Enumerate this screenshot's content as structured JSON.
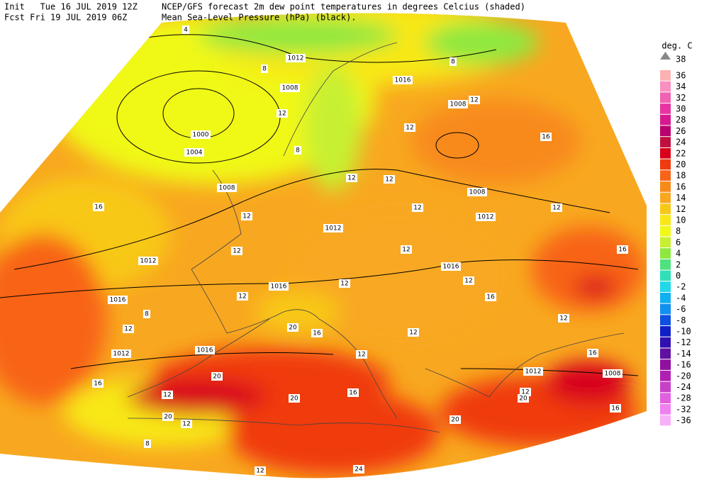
{
  "header": {
    "init": "Init   Tue 16 JUL 2019 12Z",
    "fcst": "Fcst Fri 19 JUL 2019 06Z",
    "title_line1": "NCEP/GFS forecast 2m dew point temperatures in degrees Celcius (shaded)",
    "title_line2": "Mean Sea-Level Pressure (hPa) (black)."
  },
  "legend": {
    "title": "deg. C",
    "top_value": 38,
    "levels": [
      {
        "value": 36,
        "color": "#fbb2b2"
      },
      {
        "value": 34,
        "color": "#f890c0"
      },
      {
        "value": 32,
        "color": "#f062b2"
      },
      {
        "value": 30,
        "color": "#e834a2"
      },
      {
        "value": 28,
        "color": "#d81890"
      },
      {
        "value": 26,
        "color": "#b8006e"
      },
      {
        "value": 24,
        "color": "#c01040"
      },
      {
        "value": 22,
        "color": "#d8001a"
      },
      {
        "value": 20,
        "color": "#f03a10"
      },
      {
        "value": 18,
        "color": "#f86418"
      },
      {
        "value": 16,
        "color": "#f88a1a"
      },
      {
        "value": 14,
        "color": "#f8a820"
      },
      {
        "value": 12,
        "color": "#f8c818"
      },
      {
        "value": 10,
        "color": "#f8e818"
      },
      {
        "value": 8,
        "color": "#f0f818"
      },
      {
        "value": 6,
        "color": "#c8f030"
      },
      {
        "value": 4,
        "color": "#8ee840"
      },
      {
        "value": 2,
        "color": "#50e080"
      },
      {
        "value": 0,
        "color": "#30e0b8"
      },
      {
        "value": -2,
        "color": "#20d8e8"
      },
      {
        "value": -4,
        "color": "#10b0f0"
      },
      {
        "value": -6,
        "color": "#1090f0"
      },
      {
        "value": -8,
        "color": "#1050e0"
      },
      {
        "value": -10,
        "color": "#1020c8"
      },
      {
        "value": -12,
        "color": "#3010b0"
      },
      {
        "value": -14,
        "color": "#6010a0"
      },
      {
        "value": -16,
        "color": "#9010a0"
      },
      {
        "value": -20,
        "color": "#b020b0"
      },
      {
        "value": -24,
        "color": "#c840c8"
      },
      {
        "value": -28,
        "color": "#e060e0"
      },
      {
        "value": -32,
        "color": "#f080f0"
      },
      {
        "value": -36,
        "color": "#f8b0f8"
      }
    ]
  },
  "map_labels": [
    "4",
    "1012",
    "8",
    "1016",
    "8",
    "1008",
    "1008",
    "12",
    "12",
    "1000",
    "12",
    "16",
    "1004",
    "8",
    "12",
    "12",
    "1008",
    "1008",
    "16",
    "12",
    "12",
    "12",
    "1012",
    "1012",
    "12",
    "12",
    "16",
    "1012",
    "1016",
    "1016",
    "12",
    "12",
    "8",
    "12",
    "16",
    "12",
    "1016",
    "12",
    "20",
    "16",
    "12",
    "1016",
    "1012",
    "16",
    "12",
    "1012",
    "1008",
    "20",
    "16",
    "12",
    "20",
    "16",
    "12",
    "20",
    "16",
    "20",
    "12",
    "20",
    "8",
    "12",
    "24"
  ]
}
